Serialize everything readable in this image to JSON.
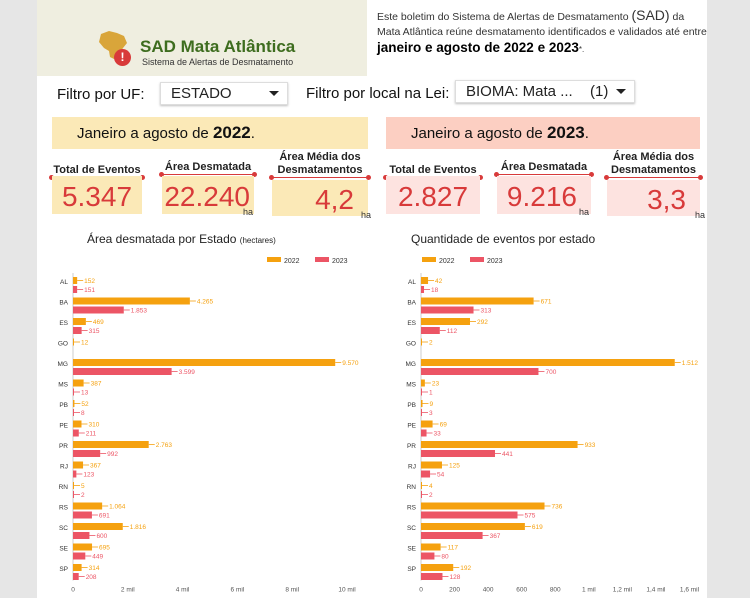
{
  "header": {
    "logo_title": "SAD Mata Atlântica",
    "logo_subtitle": "Sistema de Alertas de Desmatamento",
    "alert_symbol": "!",
    "intro_part1": "Este boletim do Sistema de Alertas de Desmatamento ",
    "intro_sad": "(SAD)",
    "intro_part2": " da Mata Atlântica reúne desmatamento identificados e validados até entre ",
    "intro_bold": "janeiro e agosto de 2022 e 2023",
    "intro_suffix": "*."
  },
  "filters": {
    "uf_label": "Filtro por UF:",
    "uf_value": "ESTADO",
    "local_label": "Filtro por local na Lei:",
    "local_value": "BIOMA: Mata ...",
    "local_count": "(1)"
  },
  "period_2022": {
    "prefix": "Janeiro a agosto de ",
    "year": "2022",
    "suffix": "."
  },
  "period_2023": {
    "prefix": "Janeiro a agosto de ",
    "year": "2023",
    "suffix": "."
  },
  "kpi_labels": {
    "events": "Total de Eventos",
    "area": "Área Desmatada",
    "avg": "Área Média dos Desmatamentos"
  },
  "kpi_2022": {
    "events": "5.347",
    "area": "22.240",
    "avg": "4,2"
  },
  "kpi_2023": {
    "events": "2.827",
    "area": "9.216",
    "avg": "3,3"
  },
  "kpi_unit": "ha",
  "chart_titles": {
    "area": "Área desmatada por Estado",
    "area_unit": "(hectares)",
    "events": "Quantidade de eventos por estado"
  },
  "colors": {
    "s2022": "#f5a10f",
    "s2023": "#ec5565",
    "bg2022": "#fbe9b7",
    "bg2023": "#fde3e0",
    "hdr2023": "#fccfc2",
    "red": "#d83a3a"
  },
  "chart_data": [
    {
      "type": "bar",
      "orientation": "horizontal",
      "title": "Área desmatada por Estado",
      "categories": [
        "AL",
        "BA",
        "ES",
        "GO",
        "MG",
        "MS",
        "PB",
        "PE",
        "PR",
        "RJ",
        "RN",
        "RS",
        "SC",
        "SE",
        "SP"
      ],
      "series": [
        {
          "name": "2022",
          "values": [
            152,
            4265,
            469,
            12,
            9570,
            387,
            52,
            310,
            2763,
            367,
            5,
            1064,
            1816,
            695,
            314
          ],
          "labels": [
            "152",
            "4.265",
            "469",
            "12",
            "9.570",
            "387",
            "52",
            "310",
            "2.763",
            "367",
            "5",
            "1.064",
            "1.816",
            "695",
            "314"
          ]
        },
        {
          "name": "2023",
          "values": [
            151,
            1853,
            315,
            null,
            3599,
            13,
            8,
            211,
            992,
            123,
            2,
            691,
            600,
            449,
            208
          ],
          "labels": [
            "151",
            "1.853",
            "315",
            "",
            "3.599",
            "13",
            "8",
            "211",
            "992",
            "123",
            "2",
            "691",
            "600",
            "449",
            "208"
          ]
        }
      ],
      "xlim": [
        0,
        10500
      ],
      "ticks": [
        0,
        2000,
        4000,
        6000,
        8000,
        10000
      ],
      "tick_labels": [
        "0",
        "2 mil",
        "4 mil",
        "6 mil",
        "8 mil",
        "10 mil"
      ],
      "legend": "top-right"
    },
    {
      "type": "bar",
      "orientation": "horizontal",
      "title": "Quantidade de eventos por estado",
      "categories": [
        "AL",
        "BA",
        "ES",
        "GO",
        "MG",
        "MS",
        "PB",
        "PE",
        "PR",
        "RJ",
        "RN",
        "RS",
        "SC",
        "SE",
        "SP"
      ],
      "series": [
        {
          "name": "2022",
          "values": [
            42,
            671,
            292,
            2,
            1512,
            23,
            9,
            69,
            933,
            125,
            4,
            736,
            619,
            117,
            192
          ],
          "labels": [
            "42",
            "671",
            "292",
            "2",
            "1.512",
            "23",
            "9",
            "69",
            "933",
            "125",
            "4",
            "736",
            "619",
            "117",
            "192"
          ]
        },
        {
          "name": "2023",
          "values": [
            18,
            313,
            112,
            null,
            700,
            1,
            3,
            33,
            441,
            54,
            2,
            575,
            367,
            80,
            128
          ],
          "labels": [
            "18",
            "313",
            "112",
            "",
            "700",
            "1",
            "3",
            "33",
            "441",
            "54",
            "2",
            "575",
            "367",
            "80",
            "128"
          ]
        }
      ],
      "xlim": [
        0,
        1650
      ],
      "ticks": [
        0,
        200,
        400,
        600,
        800,
        1000,
        1200,
        1400,
        1600
      ],
      "tick_labels": [
        "0",
        "200",
        "400",
        "600",
        "800",
        "1 mil",
        "1,2 mil",
        "1,4 mil",
        "1,6 mil"
      ],
      "legend": "top-left"
    }
  ]
}
